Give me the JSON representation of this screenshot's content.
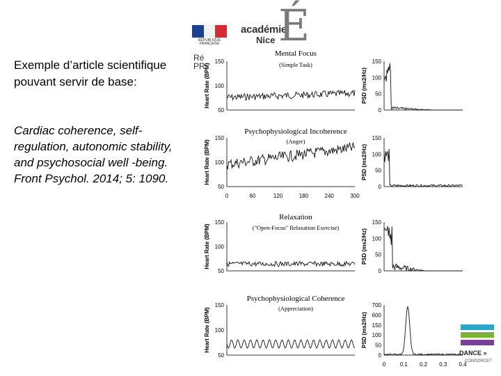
{
  "header": {
    "flag_caption": "RÉPUBLIQUE FRANÇAISE",
    "academie_line1": "académie",
    "academie_line2": "Nice",
    "academie_letter": "É",
    "cut_text_1": "Ré",
    "cut_text_2": "PR"
  },
  "left": {
    "intro": "Exemple d’article scientifique pouvant servir de base:",
    "citation_italic": "Cardiac coherence, self-regulation, autonomic stability, and psychosocial well -being.",
    "citation_journal": " Front Psychol. 2014; 5: 1090."
  },
  "figure": {
    "hr_ylabel": "Heart Rate (BPM)",
    "psd_ylabel": "PSD (ms2/Hz)",
    "panels": [
      {
        "title": "Mental Focus",
        "subtitle": "(Simple Task)",
        "hr_ticks": [
          "150",
          "100",
          "50"
        ],
        "psd_ticks": [
          "150",
          "100",
          "50",
          "0"
        ]
      },
      {
        "title": "Psychophysiological Incoherence",
        "subtitle": "(Anger)",
        "hr_ticks": [
          "150",
          "100",
          "50"
        ],
        "psd_ticks": [
          "150",
          "100",
          "50",
          "0"
        ]
      },
      {
        "title": "Relaxation",
        "subtitle": "(\"Open-Focus\" Relaxation Exercise)",
        "hr_ticks": [
          "150",
          "100",
          "50"
        ],
        "psd_ticks": [
          "150",
          "100",
          "50",
          "0"
        ]
      },
      {
        "title": "Psychophysiological Coherence",
        "subtitle": "(Appreciation)",
        "hr_ticks": [
          "150",
          "100",
          "50"
        ],
        "psd_ticks": [
          "700",
          "600",
          "150",
          "100",
          "50",
          "0"
        ]
      }
    ],
    "time_ticks": [
      "0",
      "60",
      "120",
      "180",
      "240",
      "300"
    ],
    "freq_ticks": [
      "0",
      "0.1",
      "0.2",
      "0.3",
      "0.4"
    ]
  },
  "footer": {
    "dance": "DANCE »",
    "condorcet": "CONDORCET"
  }
}
